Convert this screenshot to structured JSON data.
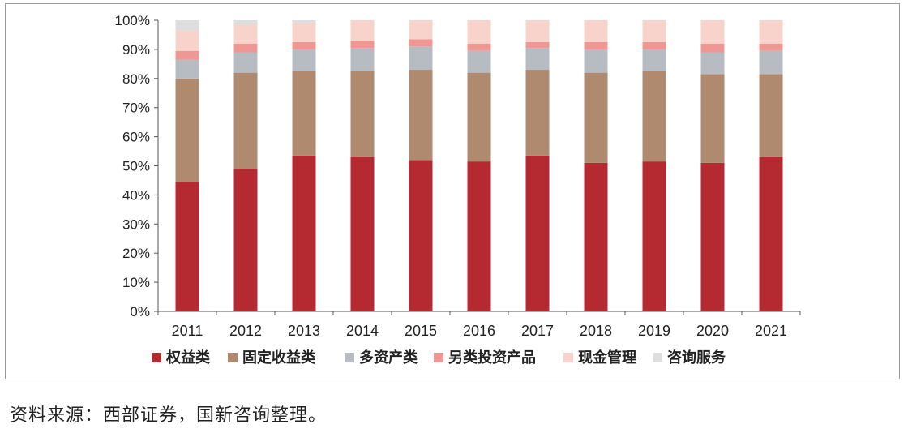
{
  "chart_data": {
    "type": "bar",
    "stacked": true,
    "categories": [
      "2011",
      "2012",
      "2013",
      "2014",
      "2015",
      "2016",
      "2017",
      "2018",
      "2019",
      "2020",
      "2021"
    ],
    "y_ticks": [
      "0%",
      "10%",
      "20%",
      "30%",
      "40%",
      "50%",
      "60%",
      "70%",
      "80%",
      "90%",
      "100%"
    ],
    "ylim": [
      0,
      100
    ],
    "legend_position": "bottom",
    "grid": false,
    "series": [
      {
        "name": "权益类",
        "color": "#b52a30",
        "values": [
          44.5,
          49,
          53.5,
          53,
          52,
          51.5,
          53.5,
          51,
          51.5,
          51,
          53
        ]
      },
      {
        "name": "固定收益类",
        "color": "#b08a6f",
        "values": [
          35.5,
          33,
          29,
          29.5,
          31,
          30.5,
          29.5,
          31,
          31,
          30.5,
          28.5
        ]
      },
      {
        "name": "多资产类",
        "color": "#b7bcc3",
        "values": [
          6.5,
          7,
          7.5,
          8,
          8,
          7.5,
          7.5,
          8,
          7.5,
          7.5,
          8
        ]
      },
      {
        "name": "另类投资产品",
        "color": "#ef9793",
        "values": [
          3,
          3,
          2.5,
          2.5,
          2.5,
          2.5,
          2,
          2.5,
          2.5,
          3,
          2.5
        ]
      },
      {
        "name": "现金管理",
        "color": "#f8d3cb",
        "values": [
          7,
          6.5,
          6.5,
          7,
          6.5,
          8,
          7.5,
          7.5,
          7.5,
          8,
          8
        ]
      },
      {
        "name": "咨询服务",
        "color": "#dedede",
        "values": [
          3.5,
          1.5,
          1,
          0,
          0,
          0,
          0,
          0,
          0,
          0,
          0
        ]
      }
    ]
  },
  "source_note": "资料来源：西部证券，国新咨询整理。"
}
